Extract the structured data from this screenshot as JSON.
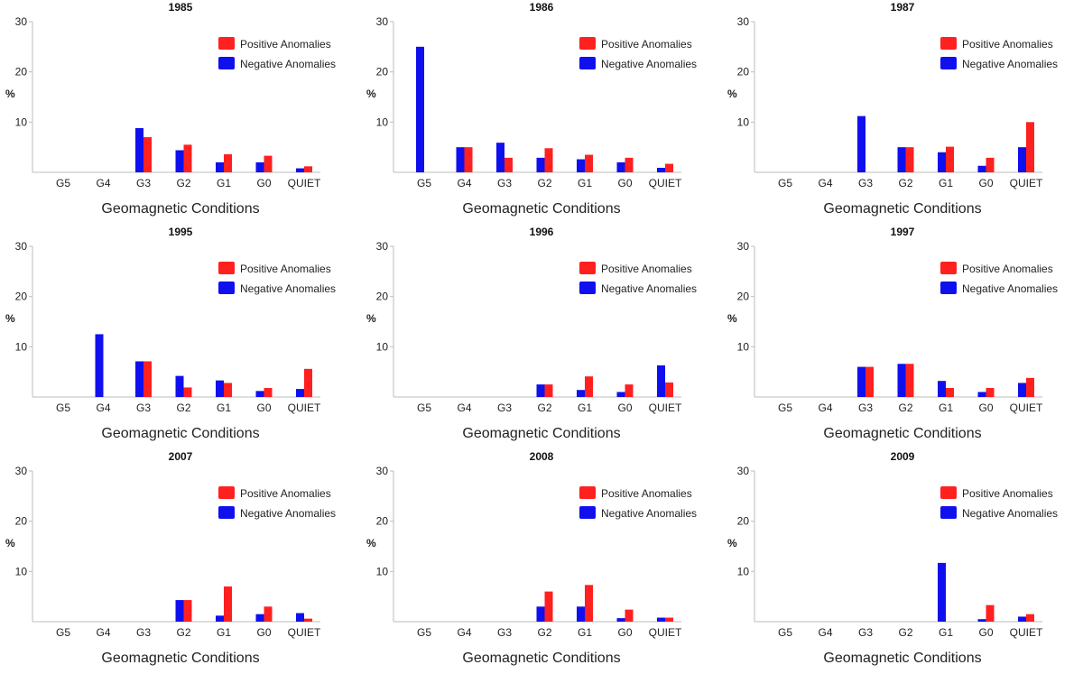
{
  "colors": {
    "positive": "#ff2020",
    "negative": "#1010ee",
    "axis": "#bdbdbd"
  },
  "chart_data": [
    {
      "type": "bar",
      "title": "1985",
      "xlabel": "Geomagnetic Conditions",
      "ylabel": "%",
      "categories": [
        "G5",
        "G4",
        "G3",
        "G2",
        "G1",
        "G0",
        "QUIET"
      ],
      "ylim": [
        0,
        30
      ],
      "yticks": [
        10,
        20,
        30
      ],
      "legend": [
        "Positive Anomalies",
        "Negative Anomalies"
      ],
      "series": [
        {
          "name": "Negative Anomalies",
          "values": [
            0,
            0,
            8.8,
            4.4,
            2.0,
            2.0,
            0.8
          ]
        },
        {
          "name": "Positive Anomalies",
          "values": [
            0,
            0,
            7.0,
            5.5,
            3.6,
            3.3,
            1.2
          ]
        }
      ]
    },
    {
      "type": "bar",
      "title": "1986",
      "xlabel": "Geomagnetic Conditions",
      "ylabel": "%",
      "categories": [
        "G5",
        "G4",
        "G3",
        "G2",
        "G1",
        "G0",
        "QUIET"
      ],
      "ylim": [
        0,
        30
      ],
      "yticks": [
        10,
        20,
        30
      ],
      "legend": [
        "Positive Anomalies",
        "Negative Anomalies"
      ],
      "series": [
        {
          "name": "Negative Anomalies",
          "values": [
            25.0,
            5.0,
            5.9,
            2.9,
            2.6,
            2.0,
            0.9
          ]
        },
        {
          "name": "Positive Anomalies",
          "values": [
            0,
            5.0,
            2.9,
            4.8,
            3.5,
            2.9,
            1.7
          ]
        }
      ]
    },
    {
      "type": "bar",
      "title": "1987",
      "xlabel": "Geomagnetic Conditions",
      "ylabel": "%",
      "categories": [
        "G5",
        "G4",
        "G3",
        "G2",
        "G1",
        "G0",
        "QUIET"
      ],
      "ylim": [
        0,
        30
      ],
      "yticks": [
        10,
        20,
        30
      ],
      "legend": [
        "Positive Anomalies",
        "Negative Anomalies"
      ],
      "series": [
        {
          "name": "Negative Anomalies",
          "values": [
            0,
            0,
            11.2,
            5.0,
            4.0,
            1.3,
            5.0
          ]
        },
        {
          "name": "Positive Anomalies",
          "values": [
            0,
            0,
            0,
            5.0,
            5.1,
            2.9,
            10.0
          ]
        }
      ]
    },
    {
      "type": "bar",
      "title": "1995",
      "xlabel": "Geomagnetic Conditions",
      "ylabel": "%",
      "categories": [
        "G5",
        "G4",
        "G3",
        "G2",
        "G1",
        "G0",
        "QUIET"
      ],
      "ylim": [
        0,
        30
      ],
      "yticks": [
        10,
        20,
        30
      ],
      "legend": [
        "Positive Anomalies",
        "Negative Anomalies"
      ],
      "series": [
        {
          "name": "Negative Anomalies",
          "values": [
            0,
            12.5,
            7.1,
            4.2,
            3.3,
            1.2,
            1.6
          ]
        },
        {
          "name": "Positive Anomalies",
          "values": [
            0,
            0,
            7.1,
            1.9,
            2.8,
            1.8,
            5.6
          ]
        }
      ]
    },
    {
      "type": "bar",
      "title": "1996",
      "xlabel": "Geomagnetic Conditions",
      "ylabel": "%",
      "categories": [
        "G5",
        "G4",
        "G3",
        "G2",
        "G1",
        "G0",
        "QUIET"
      ],
      "ylim": [
        0,
        30
      ],
      "yticks": [
        10,
        20,
        30
      ],
      "legend": [
        "Positive Anomalies",
        "Negative Anomalies"
      ],
      "series": [
        {
          "name": "Negative Anomalies",
          "values": [
            0,
            0,
            0,
            2.5,
            1.4,
            1.0,
            6.3
          ]
        },
        {
          "name": "Positive Anomalies",
          "values": [
            0,
            0,
            0,
            2.5,
            4.1,
            2.5,
            2.9
          ]
        }
      ]
    },
    {
      "type": "bar",
      "title": "1997",
      "xlabel": "Geomagnetic Conditions",
      "ylabel": "%",
      "categories": [
        "G5",
        "G4",
        "G3",
        "G2",
        "G1",
        "G0",
        "QUIET"
      ],
      "ylim": [
        0,
        30
      ],
      "yticks": [
        10,
        20,
        30
      ],
      "legend": [
        "Positive Anomalies",
        "Negative Anomalies"
      ],
      "series": [
        {
          "name": "Negative Anomalies",
          "values": [
            0,
            0,
            6.0,
            6.6,
            3.2,
            1.0,
            2.8
          ]
        },
        {
          "name": "Positive Anomalies",
          "values": [
            0,
            0,
            6.0,
            6.6,
            1.8,
            1.8,
            3.8
          ]
        }
      ]
    },
    {
      "type": "bar",
      "title": "2007",
      "xlabel": "Geomagnetic Conditions",
      "ylabel": "%",
      "categories": [
        "G5",
        "G4",
        "G3",
        "G2",
        "G1",
        "G0",
        "QUIET"
      ],
      "ylim": [
        0,
        30
      ],
      "yticks": [
        10,
        20,
        30
      ],
      "legend": [
        "Positive Anomalies",
        "Negative Anomalies"
      ],
      "series": [
        {
          "name": "Negative Anomalies",
          "values": [
            0,
            0,
            0,
            4.3,
            1.2,
            1.5,
            1.7
          ]
        },
        {
          "name": "Positive Anomalies",
          "values": [
            0,
            0,
            0,
            4.3,
            7.0,
            3.0,
            0.6
          ]
        }
      ]
    },
    {
      "type": "bar",
      "title": "2008",
      "xlabel": "Geomagnetic Conditions",
      "ylabel": "%",
      "categories": [
        "G5",
        "G4",
        "G3",
        "G2",
        "G1",
        "G0",
        "QUIET"
      ],
      "ylim": [
        0,
        30
      ],
      "yticks": [
        10,
        20,
        30
      ],
      "legend": [
        "Positive Anomalies",
        "Negative Anomalies"
      ],
      "series": [
        {
          "name": "Negative Anomalies",
          "values": [
            0,
            0,
            0,
            3.0,
            3.0,
            0.7,
            0.8
          ]
        },
        {
          "name": "Positive Anomalies",
          "values": [
            0,
            0,
            0,
            6.0,
            7.3,
            2.4,
            0.8
          ]
        }
      ]
    },
    {
      "type": "bar",
      "title": "2009",
      "xlabel": "Geomagnetic Conditions",
      "ylabel": "%",
      "categories": [
        "G5",
        "G4",
        "G3",
        "G2",
        "G1",
        "G0",
        "QUIET"
      ],
      "ylim": [
        0,
        30
      ],
      "yticks": [
        10,
        20,
        30
      ],
      "legend": [
        "Positive Anomalies",
        "Negative Anomalies"
      ],
      "series": [
        {
          "name": "Negative Anomalies",
          "values": [
            0,
            0,
            0,
            0,
            11.7,
            0.5,
            1.0
          ]
        },
        {
          "name": "Positive Anomalies",
          "values": [
            0,
            0,
            0,
            0,
            0,
            3.3,
            1.5
          ]
        }
      ]
    }
  ]
}
